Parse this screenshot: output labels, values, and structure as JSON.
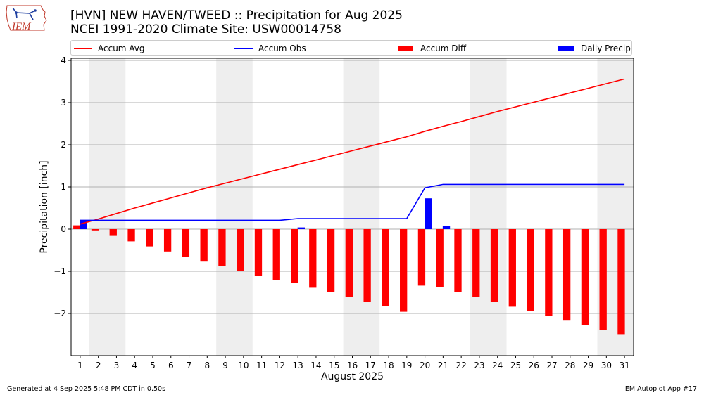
{
  "logo_text": "IEM",
  "title_line1": "[HVN] NEW HAVEN/TWEED :: Precipitation for Aug 2025",
  "title_line2": "NCEI 1991-2020 Climate Site: USW00014758",
  "footer_left": "Generated at 4 Sep 2025 5:48 PM CDT in 0.50s",
  "footer_right": "IEM Autoplot App #17",
  "legend": [
    {
      "label": "Accum Avg",
      "kind": "line",
      "color": "#ff0000"
    },
    {
      "label": "Accum Obs",
      "kind": "line",
      "color": "#0000ff"
    },
    {
      "label": "Accum Diff",
      "kind": "patch",
      "color": "#ff0000"
    },
    {
      "label": "Daily Precip",
      "kind": "patch",
      "color": "#0000ff"
    }
  ],
  "chart_data": {
    "type": "bar",
    "xlabel": "August 2025",
    "ylabel": "Precipitation [inch]",
    "xlim": [
      0.5,
      31.5
    ],
    "ylim": [
      -3,
      4.05
    ],
    "yticks": [
      -2,
      -1,
      0,
      1,
      2,
      3,
      4
    ],
    "ytick_labels": [
      "−2",
      "−1",
      "0",
      "1",
      "2",
      "3",
      "4"
    ],
    "categories": [
      1,
      2,
      3,
      4,
      5,
      6,
      7,
      8,
      9,
      10,
      11,
      12,
      13,
      14,
      15,
      16,
      17,
      18,
      19,
      20,
      21,
      22,
      23,
      24,
      25,
      26,
      27,
      28,
      29,
      30,
      31
    ],
    "grid": "horizontal",
    "weekend_shading": [
      [
        2,
        3
      ],
      [
        9,
        10
      ],
      [
        16,
        17
      ],
      [
        23,
        24
      ],
      [
        30,
        31
      ]
    ],
    "series": [
      {
        "name": "Accum Avg",
        "type": "line",
        "color": "#ff0000",
        "values": [
          0.12,
          0.24,
          0.37,
          0.5,
          0.62,
          0.74,
          0.86,
          0.98,
          1.09,
          1.2,
          1.31,
          1.42,
          1.53,
          1.64,
          1.75,
          1.86,
          1.97,
          2.08,
          2.19,
          2.32,
          2.44,
          2.55,
          2.67,
          2.79,
          2.9,
          3.01,
          3.12,
          3.23,
          3.34,
          3.45,
          3.56
        ]
      },
      {
        "name": "Accum Obs",
        "type": "line",
        "color": "#0000ff",
        "values": [
          0.21,
          0.21,
          0.21,
          0.21,
          0.21,
          0.21,
          0.21,
          0.21,
          0.21,
          0.21,
          0.21,
          0.21,
          0.25,
          0.25,
          0.25,
          0.25,
          0.25,
          0.25,
          0.25,
          0.98,
          1.06,
          1.06,
          1.06,
          1.06,
          1.06,
          1.06,
          1.06,
          1.06,
          1.06,
          1.06,
          1.06
        ]
      },
      {
        "name": "Accum Diff",
        "type": "bar",
        "color": "#ff0000",
        "values": [
          0.09,
          -0.03,
          -0.16,
          -0.29,
          -0.41,
          -0.53,
          -0.65,
          -0.77,
          -0.88,
          -0.99,
          -1.1,
          -1.21,
          -1.28,
          -1.39,
          -1.5,
          -1.61,
          -1.72,
          -1.83,
          -1.96,
          -1.34,
          -1.38,
          -1.49,
          -1.61,
          -1.73,
          -1.84,
          -1.95,
          -2.06,
          -2.17,
          -2.28,
          -2.39,
          -2.49
        ]
      },
      {
        "name": "Daily Precip",
        "type": "bar",
        "color": "#0000ff",
        "values": [
          0.21,
          0,
          0,
          0,
          0,
          0,
          0,
          0,
          0,
          0,
          0,
          0,
          0.04,
          0,
          0,
          0,
          0,
          0,
          0,
          0.73,
          0.08,
          0,
          0,
          0,
          0,
          0,
          0,
          0,
          0,
          0,
          0
        ]
      }
    ]
  }
}
